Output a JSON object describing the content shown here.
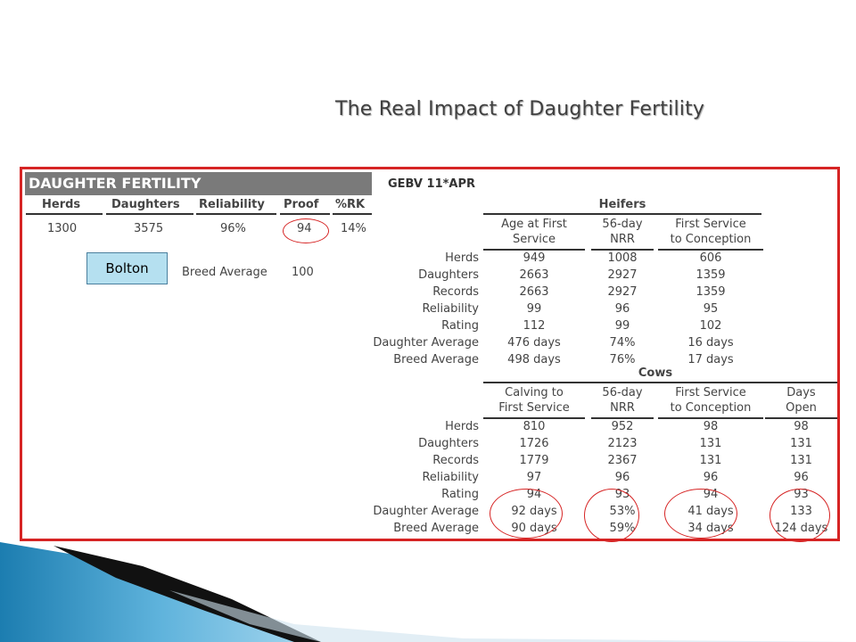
{
  "title": "The Real Impact of Daughter Fertility",
  "left_table": {
    "header": "DAUGHTER FERTILITY",
    "columns": [
      "Herds",
      "Daughters",
      "Reliability",
      "Proof",
      "%RK"
    ],
    "values": [
      "1300",
      "3575",
      "96%",
      "94",
      "14%"
    ],
    "breed_average_label": "Breed Average",
    "breed_average_value": "100"
  },
  "callout": "Bolton",
  "right_table": {
    "gebv": "GEBV 11*APR",
    "heifers": {
      "title": "Heifers",
      "columns": [
        "Age at First\nService",
        "56-day\nNRR",
        "First Service\nto Conception"
      ],
      "rows": [
        {
          "label": "Herds",
          "values": [
            "949",
            "1008",
            "606"
          ]
        },
        {
          "label": "Daughters",
          "values": [
            "2663",
            "2927",
            "1359"
          ]
        },
        {
          "label": "Records",
          "values": [
            "2663",
            "2927",
            "1359"
          ]
        },
        {
          "label": "Reliability",
          "values": [
            "99",
            "96",
            "95"
          ]
        },
        {
          "label": "Rating",
          "values": [
            "112",
            "99",
            "102"
          ]
        },
        {
          "label": "Daughter Average",
          "values": [
            "476 days",
            "74%",
            "16 days"
          ]
        },
        {
          "label": "Breed Average",
          "values": [
            "498 days",
            "76%",
            "17 days"
          ]
        }
      ]
    },
    "cows": {
      "title": "Cows",
      "columns": [
        "Calving to\nFirst Service",
        "56-day\nNRR",
        "First Service\nto Conception",
        "Days\nOpen"
      ],
      "rows": [
        {
          "label": "Herds",
          "values": [
            "810",
            "952",
            "98",
            "98"
          ]
        },
        {
          "label": "Daughters",
          "values": [
            "1726",
            "2123",
            "131",
            "131"
          ]
        },
        {
          "label": "Records",
          "values": [
            "1779",
            "2367",
            "131",
            "131"
          ]
        },
        {
          "label": "Reliability",
          "values": [
            "97",
            "96",
            "96",
            "96"
          ]
        },
        {
          "label": "Rating",
          "values": [
            "94",
            "93",
            "94",
            "93"
          ]
        },
        {
          "label": "Daughter Average",
          "values": [
            "92 days",
            "53%",
            "41 days",
            "133"
          ]
        },
        {
          "label": "Breed Average",
          "values": [
            "90 days",
            "59%",
            "34 days",
            "124 days"
          ]
        }
      ]
    }
  },
  "colors": {
    "highlight": "#d62424",
    "header_bg": "#7a7a7a",
    "callout_bg": "#b5e0f0"
  }
}
